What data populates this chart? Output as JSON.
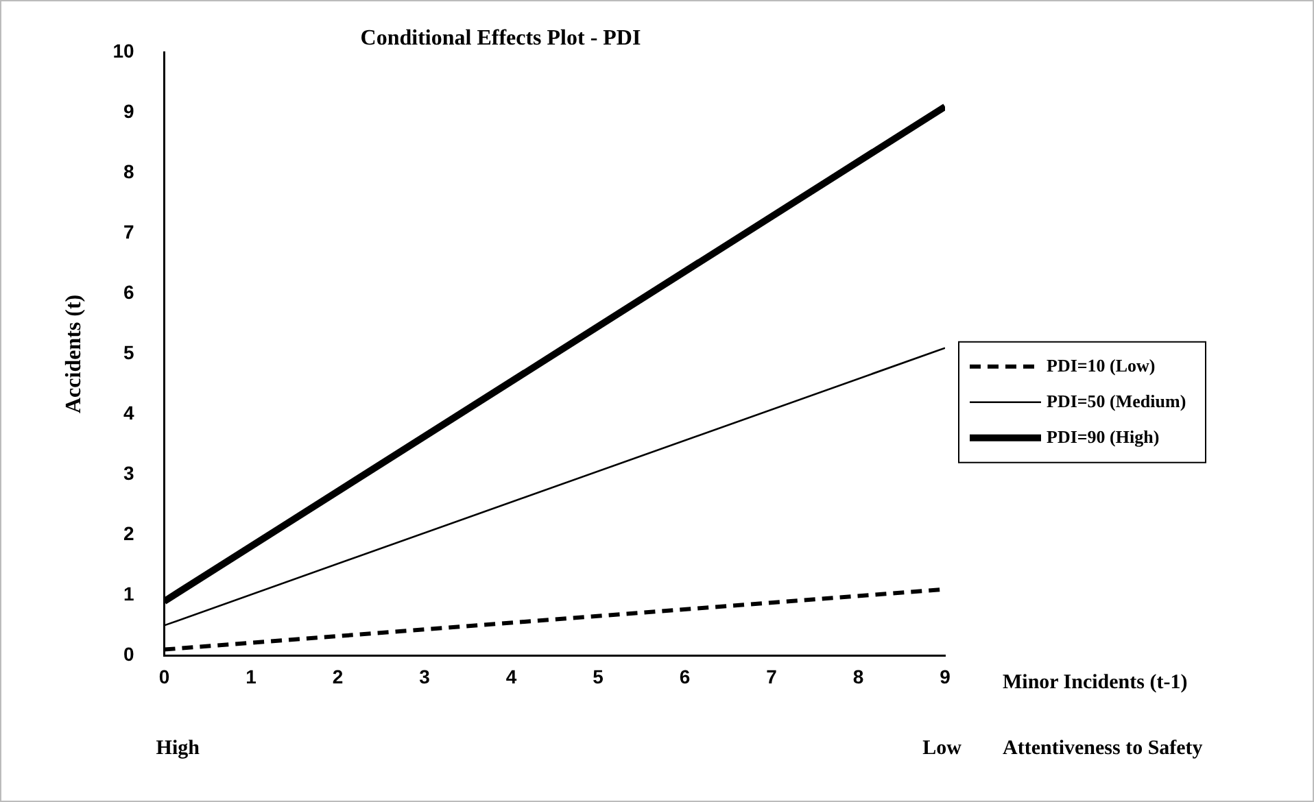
{
  "chart_data": {
    "type": "line",
    "title": "Conditional Effects Plot - PDI",
    "xlabel": "Minor Incidents (t-1)",
    "ylabel": "Accidents (t)",
    "x": [
      0,
      9
    ],
    "series": [
      {
        "name": "PDI=10 (Low)",
        "color": "#000000",
        "values": [
          0.1,
          1.1
        ],
        "line_style": "dashed"
      },
      {
        "name": "PDI=50 (Medium)",
        "color": "#000000",
        "values": [
          0.5,
          5.1
        ],
        "line_style": "solid"
      },
      {
        "name": "PDI=90 (High)",
        "color": "#000000",
        "values": [
          0.9,
          9.1
        ],
        "line_style": "solid"
      }
    ],
    "xlim": [
      0,
      9
    ],
    "xticks": [
      0,
      1,
      2,
      3,
      4,
      5,
      6,
      7,
      8,
      9
    ],
    "ylim": [
      0,
      10
    ],
    "yticks": [
      0,
      1,
      2,
      3,
      4,
      5,
      6,
      7,
      8,
      9,
      10
    ],
    "grid": false,
    "legend": "right",
    "marker": "none",
    "annotations": [
      "High",
      "Low",
      "Attentiveness to Safety"
    ]
  }
}
